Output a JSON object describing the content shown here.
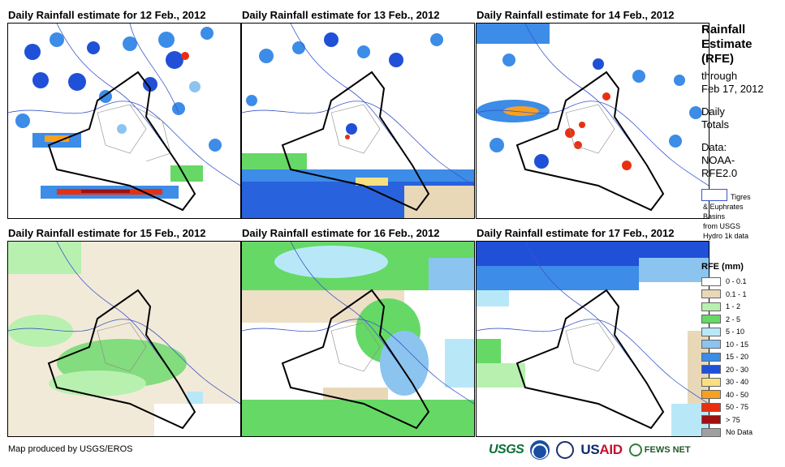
{
  "panels": [
    {
      "title": "Daily Rainfall estimate for 12 Feb., 2012"
    },
    {
      "title": "Daily Rainfall estimate for 13 Feb., 2012"
    },
    {
      "title": "Daily Rainfall estimate for 14 Feb., 2012"
    },
    {
      "title": "Daily Rainfall estimate for 15 Feb., 2012"
    },
    {
      "title": "Daily Rainfall estimate for 16 Feb., 2012"
    },
    {
      "title": "Daily Rainfall estimate for 17 Feb., 2012"
    }
  ],
  "sidebar": {
    "title_lines": [
      "Rainfall",
      "Estimate",
      "(RFE)"
    ],
    "through": "through",
    "date": "Feb 17, 2012",
    "daily": "Daily",
    "totals": "Totals",
    "data_label": "Data:",
    "data_source_1": "NOAA-",
    "data_source_2": "RFE2.0",
    "basin_line1": "Tigres",
    "basin_line2": "& Euphrates",
    "basin_line3": "Basins",
    "basin_line4": "from USGS",
    "basin_line5": "Hydro 1k data"
  },
  "legend": {
    "title": "RFE (mm)",
    "items": [
      {
        "label": "0 - 0.1",
        "color": "#ffffff"
      },
      {
        "label": "0.1 - 1",
        "color": "#e8d8b8"
      },
      {
        "label": "1 - 2",
        "color": "#b8f0b0"
      },
      {
        "label": "2 - 5",
        "color": "#66d866"
      },
      {
        "label": "5 - 10",
        "color": "#b8e8f8"
      },
      {
        "label": "10 - 15",
        "color": "#8cc4f0"
      },
      {
        "label": "15 - 20",
        "color": "#3c8ce8"
      },
      {
        "label": "20 - 30",
        "color": "#2050d8"
      },
      {
        "label": "30 - 40",
        "color": "#f8e080"
      },
      {
        "label": "40 - 50",
        "color": "#f8a020"
      },
      {
        "label": "50 - 75",
        "color": "#e83010"
      },
      {
        "label": "> 75",
        "color": "#a01010"
      },
      {
        "label": "No Data",
        "color": "#a0a0a0"
      }
    ]
  },
  "footer": {
    "credit": "Map produced by USGS/EROS",
    "logo_usgs": "USGS",
    "logo_usaid_a": "US",
    "logo_usaid_b": "AID",
    "logo_fews": "FEWS NET"
  }
}
